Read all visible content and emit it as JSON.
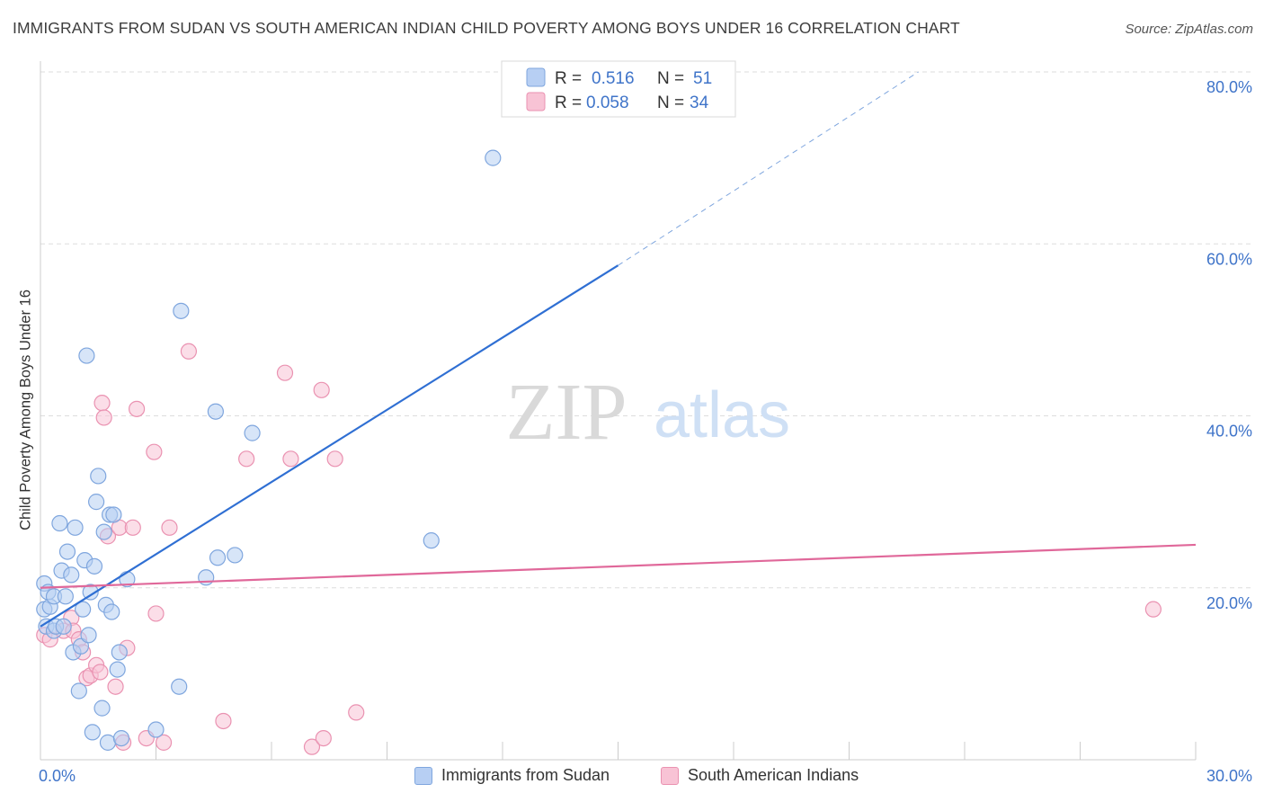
{
  "title": "IMMIGRANTS FROM SUDAN VS SOUTH AMERICAN INDIAN CHILD POVERTY AMONG BOYS UNDER 16 CORRELATION CHART",
  "source": "Source: ZipAtlas.com",
  "watermark": {
    "zip": "ZIP",
    "atlas": "atlas"
  },
  "colors": {
    "blue_fill": "#b7cff3",
    "blue_stroke": "#7fa6de",
    "blue_line": "#2f6fd3",
    "pink_fill": "#f8c3d5",
    "pink_stroke": "#ea92b1",
    "pink_line": "#e0689a",
    "axis_text": "#3f74c9",
    "grid": "#dddddd"
  },
  "legend": {
    "rows": [
      {
        "r_label": "R = ",
        "r_value": "0.516",
        "n_label": "N = ",
        "n_value": "51"
      },
      {
        "r_label": "R = ",
        "r_value": "0.058",
        "n_label": "N = ",
        "n_value": "34"
      }
    ]
  },
  "chart_data": {
    "type": "scatter",
    "title": "IMMIGRANTS FROM SUDAN VS SOUTH AMERICAN INDIAN CHILD POVERTY AMONG BOYS UNDER 16 CORRELATION CHART",
    "xlabel": "",
    "ylabel": "Child Poverty Among Boys Under 16",
    "xlim": [
      0,
      30
    ],
    "ylim": [
      0,
      80
    ],
    "x_tick_labels": [
      "0.0%",
      "30.0%"
    ],
    "y_ticks": [
      20,
      40,
      60,
      80
    ],
    "y_tick_labels": [
      "20.0%",
      "40.0%",
      "60.0%",
      "80.0%"
    ],
    "grid": true,
    "legend_placement": "top-center",
    "series": [
      {
        "name": "Immigrants from Sudan",
        "color": "blue",
        "r": 0.516,
        "n": 51,
        "trend": {
          "x0": 0.0,
          "y0": 15.5,
          "x1": 15.0,
          "y1": 57.5,
          "dash_to_x": 22.8,
          "dash_to_y": 80.0
        },
        "points": [
          [
            0.1,
            20.5
          ],
          [
            0.1,
            17.5
          ],
          [
            0.15,
            15.5
          ],
          [
            0.2,
            19.5
          ],
          [
            0.25,
            17.8
          ],
          [
            0.35,
            19.0
          ],
          [
            0.35,
            15.0
          ],
          [
            0.4,
            15.5
          ],
          [
            0.5,
            27.5
          ],
          [
            0.55,
            22.0
          ],
          [
            0.6,
            15.5
          ],
          [
            0.65,
            19.0
          ],
          [
            0.7,
            24.2
          ],
          [
            0.8,
            21.5
          ],
          [
            0.85,
            12.5
          ],
          [
            0.9,
            27.0
          ],
          [
            1.0,
            8.0
          ],
          [
            1.05,
            13.2
          ],
          [
            1.1,
            17.5
          ],
          [
            1.15,
            23.2
          ],
          [
            1.2,
            47.0
          ],
          [
            1.25,
            14.5
          ],
          [
            1.3,
            19.5
          ],
          [
            1.35,
            3.2
          ],
          [
            1.4,
            22.5
          ],
          [
            1.45,
            30.0
          ],
          [
            1.5,
            33.0
          ],
          [
            1.6,
            6.0
          ],
          [
            1.65,
            26.5
          ],
          [
            1.7,
            18.0
          ],
          [
            1.75,
            2.0
          ],
          [
            1.8,
            28.5
          ],
          [
            1.85,
            17.2
          ],
          [
            1.9,
            28.5
          ],
          [
            2.0,
            10.5
          ],
          [
            2.05,
            12.5
          ],
          [
            2.1,
            2.5
          ],
          [
            2.25,
            21.0
          ],
          [
            3.0,
            3.5
          ],
          [
            3.6,
            8.5
          ],
          [
            3.65,
            52.2
          ],
          [
            4.3,
            21.2
          ],
          [
            4.55,
            40.5
          ],
          [
            4.6,
            23.5
          ],
          [
            5.05,
            23.8
          ],
          [
            5.5,
            38.0
          ],
          [
            10.15,
            25.5
          ],
          [
            11.75,
            70.0
          ]
        ]
      },
      {
        "name": "South American Indians",
        "color": "pink",
        "r": 0.058,
        "n": 34,
        "trend": {
          "x0": 0.0,
          "y0": 20.0,
          "x1": 30.0,
          "y1": 25.0
        },
        "points": [
          [
            0.1,
            14.5
          ],
          [
            0.25,
            14.0
          ],
          [
            0.6,
            15.0
          ],
          [
            0.8,
            16.5
          ],
          [
            0.85,
            15.0
          ],
          [
            1.0,
            14.0
          ],
          [
            1.1,
            12.5
          ],
          [
            1.2,
            9.5
          ],
          [
            1.3,
            9.8
          ],
          [
            1.45,
            11.0
          ],
          [
            1.55,
            10.2
          ],
          [
            1.6,
            41.5
          ],
          [
            1.65,
            39.8
          ],
          [
            1.75,
            26.0
          ],
          [
            1.95,
            8.5
          ],
          [
            2.05,
            27.0
          ],
          [
            2.15,
            2.0
          ],
          [
            2.25,
            13.0
          ],
          [
            2.4,
            27.0
          ],
          [
            2.5,
            40.8
          ],
          [
            2.75,
            2.5
          ],
          [
            2.95,
            35.8
          ],
          [
            3.0,
            17.0
          ],
          [
            3.2,
            2.0
          ],
          [
            3.35,
            27.0
          ],
          [
            3.85,
            47.5
          ],
          [
            4.75,
            4.5
          ],
          [
            5.35,
            35.0
          ],
          [
            6.35,
            45.0
          ],
          [
            6.5,
            35.0
          ],
          [
            7.05,
            1.5
          ],
          [
            7.3,
            43.0
          ],
          [
            7.35,
            2.5
          ],
          [
            7.65,
            35.0
          ],
          [
            8.2,
            5.5
          ],
          [
            28.9,
            17.5
          ]
        ]
      }
    ]
  }
}
